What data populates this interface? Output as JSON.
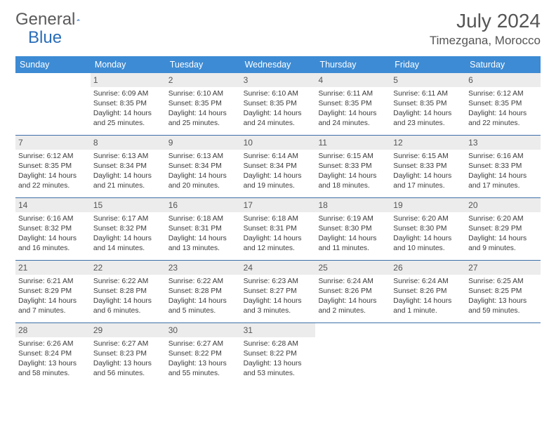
{
  "logo": {
    "part1": "General",
    "part2": "Blue"
  },
  "title": "July 2024",
  "location": "Timezgana, Morocco",
  "colors": {
    "header_bg": "#3d8bd4",
    "row_border": "#3d6fa8",
    "daynum_bg": "#ececec",
    "text": "#3b3b3b",
    "logo_blue": "#2a6db8"
  },
  "weekdays": [
    "Sunday",
    "Monday",
    "Tuesday",
    "Wednesday",
    "Thursday",
    "Friday",
    "Saturday"
  ],
  "weeks": [
    [
      null,
      {
        "n": "1",
        "sr": "6:09 AM",
        "ss": "8:35 PM",
        "dl": "14 hours and 25 minutes."
      },
      {
        "n": "2",
        "sr": "6:10 AM",
        "ss": "8:35 PM",
        "dl": "14 hours and 25 minutes."
      },
      {
        "n": "3",
        "sr": "6:10 AM",
        "ss": "8:35 PM",
        "dl": "14 hours and 24 minutes."
      },
      {
        "n": "4",
        "sr": "6:11 AM",
        "ss": "8:35 PM",
        "dl": "14 hours and 24 minutes."
      },
      {
        "n": "5",
        "sr": "6:11 AM",
        "ss": "8:35 PM",
        "dl": "14 hours and 23 minutes."
      },
      {
        "n": "6",
        "sr": "6:12 AM",
        "ss": "8:35 PM",
        "dl": "14 hours and 22 minutes."
      }
    ],
    [
      {
        "n": "7",
        "sr": "6:12 AM",
        "ss": "8:35 PM",
        "dl": "14 hours and 22 minutes."
      },
      {
        "n": "8",
        "sr": "6:13 AM",
        "ss": "8:34 PM",
        "dl": "14 hours and 21 minutes."
      },
      {
        "n": "9",
        "sr": "6:13 AM",
        "ss": "8:34 PM",
        "dl": "14 hours and 20 minutes."
      },
      {
        "n": "10",
        "sr": "6:14 AM",
        "ss": "8:34 PM",
        "dl": "14 hours and 19 minutes."
      },
      {
        "n": "11",
        "sr": "6:15 AM",
        "ss": "8:33 PM",
        "dl": "14 hours and 18 minutes."
      },
      {
        "n": "12",
        "sr": "6:15 AM",
        "ss": "8:33 PM",
        "dl": "14 hours and 17 minutes."
      },
      {
        "n": "13",
        "sr": "6:16 AM",
        "ss": "8:33 PM",
        "dl": "14 hours and 17 minutes."
      }
    ],
    [
      {
        "n": "14",
        "sr": "6:16 AM",
        "ss": "8:32 PM",
        "dl": "14 hours and 16 minutes."
      },
      {
        "n": "15",
        "sr": "6:17 AM",
        "ss": "8:32 PM",
        "dl": "14 hours and 14 minutes."
      },
      {
        "n": "16",
        "sr": "6:18 AM",
        "ss": "8:31 PM",
        "dl": "14 hours and 13 minutes."
      },
      {
        "n": "17",
        "sr": "6:18 AM",
        "ss": "8:31 PM",
        "dl": "14 hours and 12 minutes."
      },
      {
        "n": "18",
        "sr": "6:19 AM",
        "ss": "8:30 PM",
        "dl": "14 hours and 11 minutes."
      },
      {
        "n": "19",
        "sr": "6:20 AM",
        "ss": "8:30 PM",
        "dl": "14 hours and 10 minutes."
      },
      {
        "n": "20",
        "sr": "6:20 AM",
        "ss": "8:29 PM",
        "dl": "14 hours and 9 minutes."
      }
    ],
    [
      {
        "n": "21",
        "sr": "6:21 AM",
        "ss": "8:29 PM",
        "dl": "14 hours and 7 minutes."
      },
      {
        "n": "22",
        "sr": "6:22 AM",
        "ss": "8:28 PM",
        "dl": "14 hours and 6 minutes."
      },
      {
        "n": "23",
        "sr": "6:22 AM",
        "ss": "8:28 PM",
        "dl": "14 hours and 5 minutes."
      },
      {
        "n": "24",
        "sr": "6:23 AM",
        "ss": "8:27 PM",
        "dl": "14 hours and 3 minutes."
      },
      {
        "n": "25",
        "sr": "6:24 AM",
        "ss": "8:26 PM",
        "dl": "14 hours and 2 minutes."
      },
      {
        "n": "26",
        "sr": "6:24 AM",
        "ss": "8:26 PM",
        "dl": "14 hours and 1 minute."
      },
      {
        "n": "27",
        "sr": "6:25 AM",
        "ss": "8:25 PM",
        "dl": "13 hours and 59 minutes."
      }
    ],
    [
      {
        "n": "28",
        "sr": "6:26 AM",
        "ss": "8:24 PM",
        "dl": "13 hours and 58 minutes."
      },
      {
        "n": "29",
        "sr": "6:27 AM",
        "ss": "8:23 PM",
        "dl": "13 hours and 56 minutes."
      },
      {
        "n": "30",
        "sr": "6:27 AM",
        "ss": "8:22 PM",
        "dl": "13 hours and 55 minutes."
      },
      {
        "n": "31",
        "sr": "6:28 AM",
        "ss": "8:22 PM",
        "dl": "13 hours and 53 minutes."
      },
      null,
      null,
      null
    ]
  ],
  "labels": {
    "sunrise": "Sunrise: ",
    "sunset": "Sunset: ",
    "daylight": "Daylight: "
  }
}
